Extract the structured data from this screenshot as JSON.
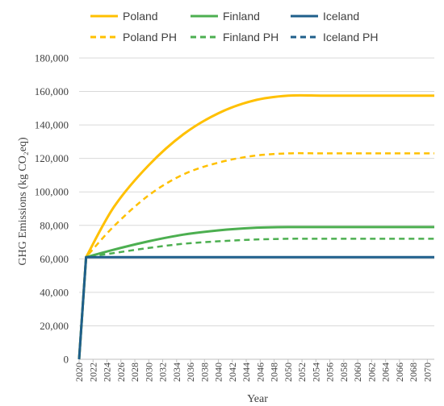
{
  "chart_data": {
    "type": "line",
    "xlabel": "Year",
    "ylabel": "GHG Emissions (kg CO₂eq)",
    "ylim": [
      0,
      180000
    ],
    "xlim": [
      2020,
      2071
    ],
    "y_ticks": [
      "0",
      "20,000",
      "40,000",
      "60,000",
      "80,000",
      "100,000",
      "120,000",
      "140,000",
      "160,000",
      "180,000"
    ],
    "x_ticks": [
      "2020",
      "2022",
      "2024",
      "2026",
      "2028",
      "2030",
      "2032",
      "2034",
      "2036",
      "2038",
      "2040",
      "2042",
      "2044",
      "2046",
      "2048",
      "2050",
      "2052",
      "2054",
      "2056",
      "2058",
      "2060",
      "2062",
      "2064",
      "2066",
      "2068",
      "2070"
    ],
    "grid": "horizontal",
    "legend_position": "top",
    "x": [
      2020,
      2021,
      2025,
      2030,
      2035,
      2040,
      2045,
      2050,
      2055,
      2060,
      2065,
      2071
    ],
    "series": [
      {
        "name": "Poland",
        "color": "#FFC000",
        "dash": "solid",
        "values": [
          0,
          61000,
          91000,
          116000,
          134500,
          147000,
          154500,
          157500,
          157500,
          157500,
          157500,
          157500
        ]
      },
      {
        "name": "Finland",
        "color": "#4CAF50",
        "dash": "solid",
        "values": [
          0,
          61000,
          65500,
          70500,
          74500,
          77000,
          78500,
          79000,
          79000,
          79000,
          79000,
          79000
        ]
      },
      {
        "name": "Iceland",
        "color": "#1F5F8B",
        "dash": "solid",
        "values": [
          0,
          61000,
          61000,
          61000,
          61000,
          61000,
          61000,
          61000,
          61000,
          61000,
          61000,
          61000
        ]
      },
      {
        "name": "Poland PH",
        "color": "#FFC000",
        "dash": "dashed",
        "values": [
          0,
          61000,
          79500,
          98000,
          110500,
          117500,
          121500,
          123000,
          123000,
          123000,
          123000,
          123000
        ]
      },
      {
        "name": "Finland PH",
        "color": "#4CAF50",
        "dash": "dashed",
        "values": [
          0,
          61000,
          63500,
          66500,
          69000,
          70500,
          71500,
          72000,
          72000,
          72000,
          72000,
          72000
        ]
      },
      {
        "name": "Iceland PH",
        "color": "#1F5F8B",
        "dash": "dashed",
        "values": [
          0,
          61000,
          61000,
          61000,
          61000,
          61000,
          61000,
          61000,
          61000,
          61000,
          61000,
          61000
        ]
      }
    ]
  }
}
